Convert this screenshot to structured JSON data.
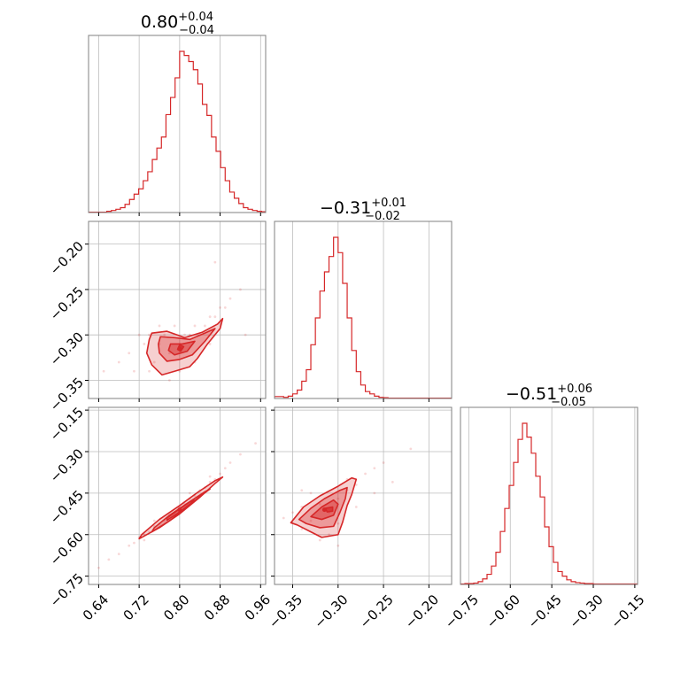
{
  "chart_data": {
    "type": "corner",
    "color": "#d62728",
    "grid": true,
    "parameters": [
      {
        "title": {
          "median": "0.80",
          "plus": "+0.04",
          "minus": "−0.04"
        },
        "range": [
          0.62,
          0.97
        ],
        "ticks": [
          0.64,
          0.72,
          0.8,
          0.88,
          0.96
        ],
        "tick_labels": [
          "0.64",
          "0.72",
          "0.80",
          "0.88",
          "0.96"
        ],
        "hist_range": [
          0.62,
          0.98
        ],
        "hist_counts": [
          1,
          1,
          1,
          1,
          3,
          5,
          8,
          12,
          20,
          32,
          45,
          58,
          78,
          100,
          130,
          158,
          185,
          240,
          282,
          330,
          395,
          385,
          370,
          350,
          315,
          265,
          238,
          185,
          150,
          110,
          78,
          50,
          35,
          22,
          12,
          8,
          5,
          3,
          2,
          1
        ]
      },
      {
        "title": {
          "median": "−0.31",
          "plus": "+0.01",
          "minus": "−0.02"
        },
        "range": [
          -0.37,
          -0.175
        ],
        "ticks": [
          -0.35,
          -0.3,
          -0.25,
          -0.2
        ],
        "tick_labels": [
          "−0.35",
          "−0.30",
          "−0.25",
          "−0.20"
        ],
        "hist_range": [
          -0.37,
          -0.175
        ],
        "hist_counts": [
          5,
          5,
          3,
          6,
          12,
          22,
          45,
          75,
          140,
          210,
          280,
          330,
          370,
          420,
          380,
          300,
          210,
          125,
          70,
          35,
          18,
          12,
          6,
          3,
          2,
          1,
          1,
          1,
          1,
          1,
          1,
          1,
          1,
          1,
          1,
          1,
          1,
          1,
          1
        ]
      },
      {
        "title": {
          "median": "−0.51",
          "plus": "+0.06",
          "minus": "−0.05"
        },
        "range": [
          -0.78,
          -0.14
        ],
        "ticks": [
          -0.75,
          -0.6,
          -0.45,
          -0.3,
          -0.15
        ],
        "tick_labels": [
          "−0.75",
          "−0.60",
          "−0.45",
          "−0.30",
          "−0.15"
        ],
        "hist_range": [
          -0.78,
          -0.14
        ],
        "hist_counts": [
          1,
          2,
          2,
          3,
          6,
          12,
          22,
          40,
          70,
          115,
          165,
          215,
          265,
          315,
          350,
          320,
          285,
          235,
          190,
          125,
          82,
          48,
          28,
          18,
          10,
          6,
          4,
          3,
          2,
          2,
          1,
          1,
          1,
          1,
          1,
          1,
          1,
          1,
          1,
          1
        ]
      }
    ],
    "pairs": [
      {
        "x": 0,
        "y": 1,
        "center": [
          0.8,
          -0.315
        ],
        "samples": [
          [
            0.72,
            -0.3
          ],
          [
            0.73,
            -0.31
          ],
          [
            0.74,
            -0.3
          ],
          [
            0.75,
            -0.33
          ],
          [
            0.76,
            -0.31
          ],
          [
            0.77,
            -0.3
          ],
          [
            0.78,
            -0.32
          ],
          [
            0.79,
            -0.29
          ],
          [
            0.8,
            -0.31
          ],
          [
            0.81,
            -0.3
          ],
          [
            0.82,
            -0.3
          ],
          [
            0.83,
            -0.29
          ],
          [
            0.84,
            -0.3
          ],
          [
            0.85,
            -0.29
          ],
          [
            0.86,
            -0.28
          ],
          [
            0.87,
            -0.28
          ],
          [
            0.88,
            -0.27
          ],
          [
            0.89,
            -0.27
          ],
          [
            0.9,
            -0.26
          ],
          [
            0.92,
            -0.25
          ],
          [
            0.7,
            -0.32
          ],
          [
            0.71,
            -0.34
          ],
          [
            0.74,
            -0.34
          ],
          [
            0.78,
            -0.35
          ],
          [
            0.76,
            -0.29
          ],
          [
            0.8,
            -0.34
          ],
          [
            0.83,
            -0.33
          ],
          [
            0.86,
            -0.31
          ],
          [
            0.68,
            -0.33
          ],
          [
            0.87,
            -0.22
          ],
          [
            0.93,
            -0.3
          ],
          [
            0.65,
            -0.34
          ]
        ],
        "contours": [
          [
            [
              0.745,
              -0.298
            ],
            [
              0.775,
              -0.296
            ],
            [
              0.81,
              -0.303
            ],
            [
              0.845,
              -0.297
            ],
            [
              0.875,
              -0.288
            ],
            [
              0.885,
              -0.282
            ],
            [
              0.88,
              -0.293
            ],
            [
              0.855,
              -0.31
            ],
            [
              0.835,
              -0.326
            ],
            [
              0.82,
              -0.335
            ],
            [
              0.79,
              -0.34
            ],
            [
              0.765,
              -0.344
            ],
            [
              0.745,
              -0.333
            ],
            [
              0.735,
              -0.32
            ],
            [
              0.74,
              -0.305
            ]
          ],
          [
            [
              0.762,
              -0.302
            ],
            [
              0.79,
              -0.303
            ],
            [
              0.82,
              -0.305
            ],
            [
              0.85,
              -0.298
            ],
            [
              0.87,
              -0.293
            ],
            [
              0.85,
              -0.307
            ],
            [
              0.825,
              -0.322
            ],
            [
              0.8,
              -0.327
            ],
            [
              0.775,
              -0.329
            ],
            [
              0.76,
              -0.32
            ],
            [
              0.758,
              -0.31
            ]
          ],
          [
            [
              0.782,
              -0.31
            ],
            [
              0.805,
              -0.31
            ],
            [
              0.83,
              -0.307
            ],
            [
              0.815,
              -0.318
            ],
            [
              0.79,
              -0.322
            ],
            [
              0.778,
              -0.317
            ]
          ],
          [
            [
              0.8,
              -0.311
            ],
            [
              0.808,
              -0.313
            ],
            [
              0.802,
              -0.318
            ],
            [
              0.796,
              -0.316
            ]
          ]
        ]
      },
      {
        "x": 0,
        "y": 2,
        "center": [
          0.8,
          -0.51
        ],
        "samples": [
          [
            0.64,
            -0.72
          ],
          [
            0.66,
            -0.69
          ],
          [
            0.68,
            -0.67
          ],
          [
            0.7,
            -0.64
          ],
          [
            0.71,
            -0.63
          ],
          [
            0.72,
            -0.61
          ],
          [
            0.73,
            -0.6
          ],
          [
            0.74,
            -0.59
          ],
          [
            0.75,
            -0.57
          ],
          [
            0.76,
            -0.56
          ],
          [
            0.77,
            -0.55
          ],
          [
            0.78,
            -0.53
          ],
          [
            0.79,
            -0.52
          ],
          [
            0.8,
            -0.5
          ],
          [
            0.81,
            -0.49
          ],
          [
            0.82,
            -0.47
          ],
          [
            0.83,
            -0.46
          ],
          [
            0.84,
            -0.44
          ],
          [
            0.85,
            -0.43
          ],
          [
            0.86,
            -0.41
          ],
          [
            0.87,
            -0.4
          ],
          [
            0.88,
            -0.38
          ],
          [
            0.89,
            -0.36
          ],
          [
            0.9,
            -0.34
          ],
          [
            0.92,
            -0.31
          ],
          [
            0.95,
            -0.27
          ],
          [
            0.75,
            -0.55
          ],
          [
            0.82,
            -0.45
          ],
          [
            0.73,
            -0.62
          ],
          [
            0.86,
            -0.39
          ]
        ],
        "contours": [
          [
            [
              0.72,
              -0.615
            ],
            [
              0.76,
              -0.575
            ],
            [
              0.8,
              -0.525
            ],
            [
              0.84,
              -0.465
            ],
            [
              0.87,
              -0.415
            ],
            [
              0.885,
              -0.392
            ],
            [
              0.87,
              -0.405
            ],
            [
              0.835,
              -0.448
            ],
            [
              0.8,
              -0.495
            ],
            [
              0.76,
              -0.545
            ],
            [
              0.725,
              -0.6
            ]
          ],
          [
            [
              0.745,
              -0.59
            ],
            [
              0.78,
              -0.55
            ],
            [
              0.815,
              -0.5
            ],
            [
              0.845,
              -0.455
            ],
            [
              0.86,
              -0.435
            ],
            [
              0.85,
              -0.445
            ],
            [
              0.815,
              -0.487
            ],
            [
              0.78,
              -0.53
            ],
            [
              0.75,
              -0.575
            ]
          ],
          [
            [
              0.775,
              -0.548
            ],
            [
              0.8,
              -0.518
            ],
            [
              0.83,
              -0.476
            ],
            [
              0.82,
              -0.482
            ],
            [
              0.79,
              -0.52
            ],
            [
              0.775,
              -0.54
            ]
          ]
        ]
      },
      {
        "x": 1,
        "y": 2,
        "center": [
          -0.315,
          -0.51
        ],
        "samples": [
          [
            -0.35,
            -0.52
          ],
          [
            -0.34,
            -0.5
          ],
          [
            -0.33,
            -0.55
          ],
          [
            -0.32,
            -0.49
          ],
          [
            -0.31,
            -0.52
          ],
          [
            -0.3,
            -0.47
          ],
          [
            -0.29,
            -0.44
          ],
          [
            -0.28,
            -0.42
          ],
          [
            -0.33,
            -0.45
          ],
          [
            -0.34,
            -0.58
          ],
          [
            -0.31,
            -0.6
          ],
          [
            -0.3,
            -0.56
          ],
          [
            -0.29,
            -0.4
          ],
          [
            -0.27,
            -0.38
          ],
          [
            -0.26,
            -0.36
          ],
          [
            -0.32,
            -0.62
          ],
          [
            -0.36,
            -0.54
          ],
          [
            -0.28,
            -0.5
          ],
          [
            -0.25,
            -0.34
          ],
          [
            -0.22,
            -0.29
          ],
          [
            -0.24,
            -0.41
          ],
          [
            -0.34,
            -0.44
          ],
          [
            -0.3,
            -0.64
          ],
          [
            -0.26,
            -0.45
          ]
        ],
        "contours": [
          [
            [
              -0.352,
              -0.557
            ],
            [
              -0.338,
              -0.5
            ],
            [
              -0.32,
              -0.46
            ],
            [
              -0.3,
              -0.425
            ],
            [
              -0.285,
              -0.395
            ],
            [
              -0.28,
              -0.4
            ],
            [
              -0.285,
              -0.455
            ],
            [
              -0.29,
              -0.495
            ],
            [
              -0.295,
              -0.555
            ],
            [
              -0.3,
              -0.6
            ],
            [
              -0.318,
              -0.61
            ],
            [
              -0.33,
              -0.59
            ],
            [
              -0.345,
              -0.565
            ]
          ],
          [
            [
              -0.343,
              -0.545
            ],
            [
              -0.33,
              -0.505
            ],
            [
              -0.315,
              -0.47
            ],
            [
              -0.298,
              -0.44
            ],
            [
              -0.29,
              -0.43
            ],
            [
              -0.292,
              -0.47
            ],
            [
              -0.298,
              -0.52
            ],
            [
              -0.305,
              -0.57
            ],
            [
              -0.32,
              -0.575
            ],
            [
              -0.335,
              -0.56
            ]
          ],
          [
            [
              -0.33,
              -0.535
            ],
            [
              -0.318,
              -0.5
            ],
            [
              -0.305,
              -0.475
            ],
            [
              -0.3,
              -0.49
            ],
            [
              -0.305,
              -0.53
            ],
            [
              -0.318,
              -0.545
            ]
          ],
          [
            [
              -0.314,
              -0.505
            ],
            [
              -0.306,
              -0.5
            ],
            [
              -0.306,
              -0.515
            ],
            [
              -0.312,
              -0.518
            ]
          ]
        ]
      }
    ]
  }
}
